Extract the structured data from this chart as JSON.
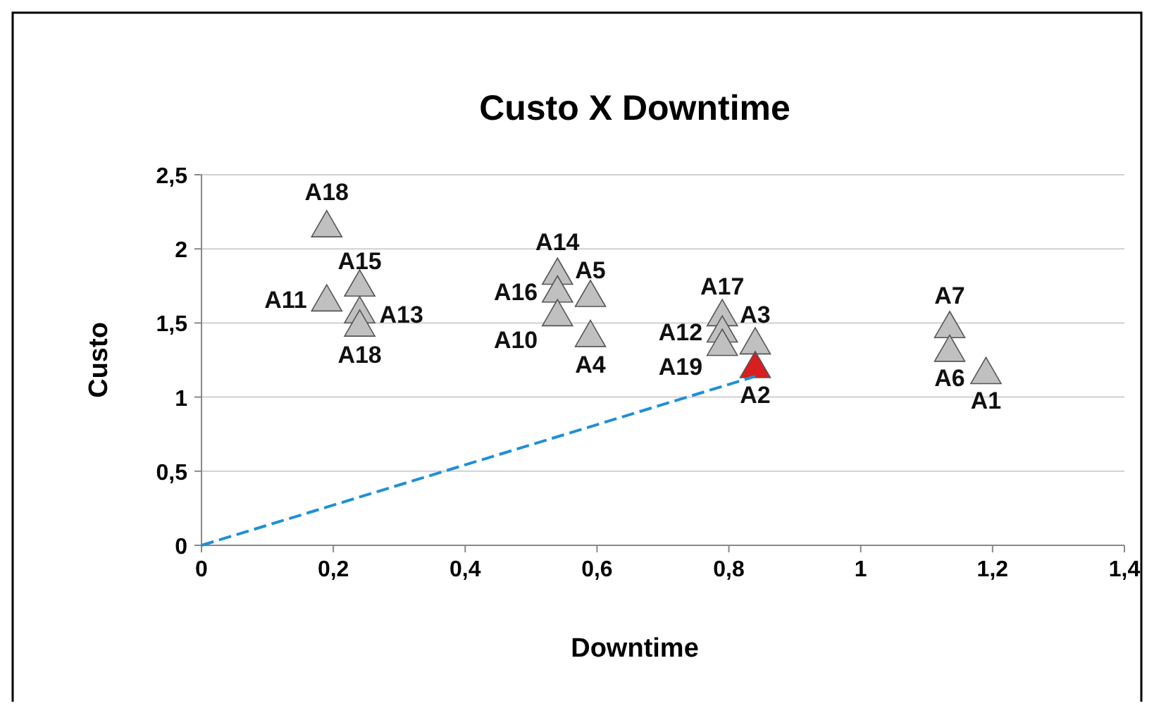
{
  "chart_data": {
    "type": "scatter",
    "title": "Custo X Downtime",
    "xlabel": "Downtime",
    "ylabel": "Custo",
    "xlim": [
      0,
      1.4
    ],
    "xticks": [
      {
        "value": 0,
        "label": "0"
      },
      {
        "value": 0.2,
        "label": "0,2"
      },
      {
        "value": 0.4,
        "label": "0,4"
      },
      {
        "value": 0.6,
        "label": "0,6"
      },
      {
        "value": 0.8,
        "label": "0,8"
      },
      {
        "value": 1,
        "label": "1"
      },
      {
        "value": 1.2,
        "label": "1,2"
      },
      {
        "value": 1.4,
        "label": "1,4"
      }
    ],
    "ylim": [
      0,
      2.5
    ],
    "yticks": [
      {
        "value": 0,
        "label": "0"
      },
      {
        "value": 0.5,
        "label": "0,5"
      },
      {
        "value": 1,
        "label": "1"
      },
      {
        "value": 1.5,
        "label": "1,5"
      },
      {
        "value": 2,
        "label": "2"
      },
      {
        "value": 2.5,
        "label": "2,5"
      }
    ],
    "grid": "y",
    "legend": false,
    "marker": "triangle",
    "series": [
      {
        "type": "line",
        "x": [
          0,
          0.84
        ],
        "values": [
          0,
          1.14
        ],
        "color": "#1f8fd6",
        "line_style": "dashed",
        "marker": "none"
      },
      {
        "name": "A18",
        "x": [
          0.19
        ],
        "values": [
          2.14
        ],
        "color": "#c0c0c0"
      },
      {
        "name": "A15",
        "x": [
          0.24
        ],
        "values": [
          1.74
        ],
        "color": "#c0c0c0"
      },
      {
        "name": "A11",
        "x": [
          0.19
        ],
        "values": [
          1.64
        ],
        "color": "#c0c0c0"
      },
      {
        "name": "A13",
        "x": [
          0.24
        ],
        "values": [
          1.56
        ],
        "color": "#c0c0c0"
      },
      {
        "name": "A18",
        "x": [
          0.24
        ],
        "values": [
          1.47
        ],
        "color": "#c0c0c0"
      },
      {
        "name": "A14",
        "x": [
          0.54
        ],
        "values": [
          1.82
        ],
        "color": "#c0c0c0"
      },
      {
        "name": "A16",
        "x": [
          0.54
        ],
        "values": [
          1.7
        ],
        "color": "#c0c0c0"
      },
      {
        "name": "A10",
        "x": [
          0.54
        ],
        "values": [
          1.54
        ],
        "color": "#c0c0c0"
      },
      {
        "name": "A5",
        "x": [
          0.59
        ],
        "values": [
          1.67
        ],
        "color": "#c0c0c0"
      },
      {
        "name": "A4",
        "x": [
          0.59
        ],
        "values": [
          1.4
        ],
        "color": "#c0c0c0"
      },
      {
        "name": "A17",
        "x": [
          0.79
        ],
        "values": [
          1.54
        ],
        "color": "#c0c0c0"
      },
      {
        "name": "A12",
        "x": [
          0.79
        ],
        "values": [
          1.43
        ],
        "color": "#c0c0c0"
      },
      {
        "name": "A19",
        "x": [
          0.79
        ],
        "values": [
          1.34
        ],
        "color": "#c0c0c0"
      },
      {
        "name": "A3",
        "x": [
          0.84
        ],
        "values": [
          1.35
        ],
        "color": "#c0c0c0"
      },
      {
        "name": "A2",
        "x": [
          0.84
        ],
        "values": [
          1.19
        ],
        "color": "#d81e1e"
      },
      {
        "name": "A7",
        "x": [
          1.135
        ],
        "values": [
          1.46
        ],
        "color": "#c0c0c0"
      },
      {
        "name": "A6",
        "x": [
          1.135
        ],
        "values": [
          1.3
        ],
        "color": "#c0c0c0"
      },
      {
        "name": "A1",
        "x": [
          1.19
        ],
        "values": [
          1.15
        ],
        "color": "#c0c0c0"
      }
    ]
  }
}
